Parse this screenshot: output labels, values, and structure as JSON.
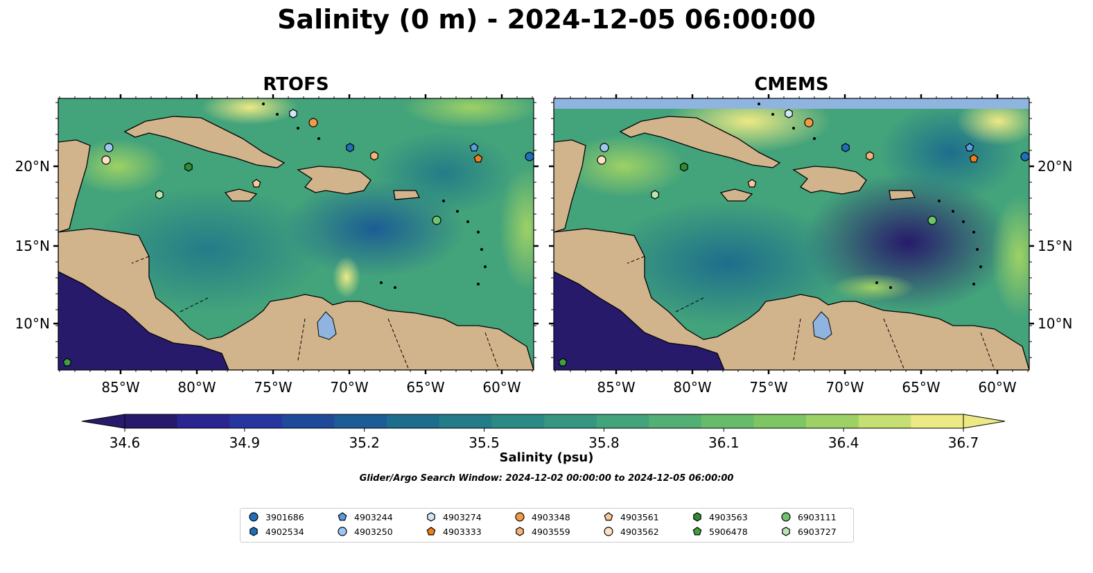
{
  "title": "Salinity (0 m) - 2024-12-05 06:00:00",
  "panels": [
    {
      "title": "RTOFS"
    },
    {
      "title": "CMEMS"
    }
  ],
  "axes": {
    "lon_ticks": [
      "85°W",
      "80°W",
      "75°W",
      "70°W",
      "65°W",
      "60°W"
    ],
    "lat_ticks": [
      "20°N",
      "15°N",
      "10°N"
    ]
  },
  "colorbar": {
    "label": "Salinity (psu)",
    "ticks": [
      "34.6",
      "34.9",
      "35.2",
      "35.5",
      "35.8",
      "36.1",
      "36.4",
      "36.7"
    ],
    "colors": [
      "#271a6b",
      "#2a2590",
      "#27369f",
      "#1f4a9a",
      "#1b5d94",
      "#1d6e8c",
      "#237c88",
      "#2b8a84",
      "#369680",
      "#43a37b",
      "#52b074",
      "#66bc6b",
      "#7ec663",
      "#9ed165",
      "#c5df73",
      "#ede984"
    ]
  },
  "window_note": "Glider/Argo Search Window: 2024-12-02 00:00:00 to 2024-12-05 06:00:00",
  "colors": {
    "land": "#d2b48c",
    "ocean_pacific": "#271a6b",
    "lake": "#90b4e0"
  },
  "floats": [
    {
      "id": "3901686",
      "marker": "circle",
      "color": "#1f6fb8"
    },
    {
      "id": "4902534",
      "marker": "hexagon",
      "color": "#1f6fb8"
    },
    {
      "id": "4903244",
      "marker": "pentagon",
      "color": "#5b9be0"
    },
    {
      "id": "4903250",
      "marker": "circle",
      "color": "#9cc7ef"
    },
    {
      "id": "4903274",
      "marker": "hexagon",
      "color": "#cfe6fb"
    },
    {
      "id": "4903333",
      "marker": "pentagon",
      "color": "#f07e1a"
    },
    {
      "id": "4903348",
      "marker": "circle",
      "color": "#f49a45"
    },
    {
      "id": "4903559",
      "marker": "hexagon",
      "color": "#f7b378"
    },
    {
      "id": "4903561",
      "marker": "pentagon",
      "color": "#fac79c"
    },
    {
      "id": "4903562",
      "marker": "circle",
      "color": "#fde0c6"
    },
    {
      "id": "4903563",
      "marker": "hexagon",
      "color": "#2e8b2e"
    },
    {
      "id": "5906478",
      "marker": "pentagon",
      "color": "#3fa03f"
    },
    {
      "id": "6903111",
      "marker": "circle",
      "color": "#6cc46c"
    },
    {
      "id": "6903727",
      "marker": "hexagon",
      "color": "#b8e6b0"
    }
  ]
}
